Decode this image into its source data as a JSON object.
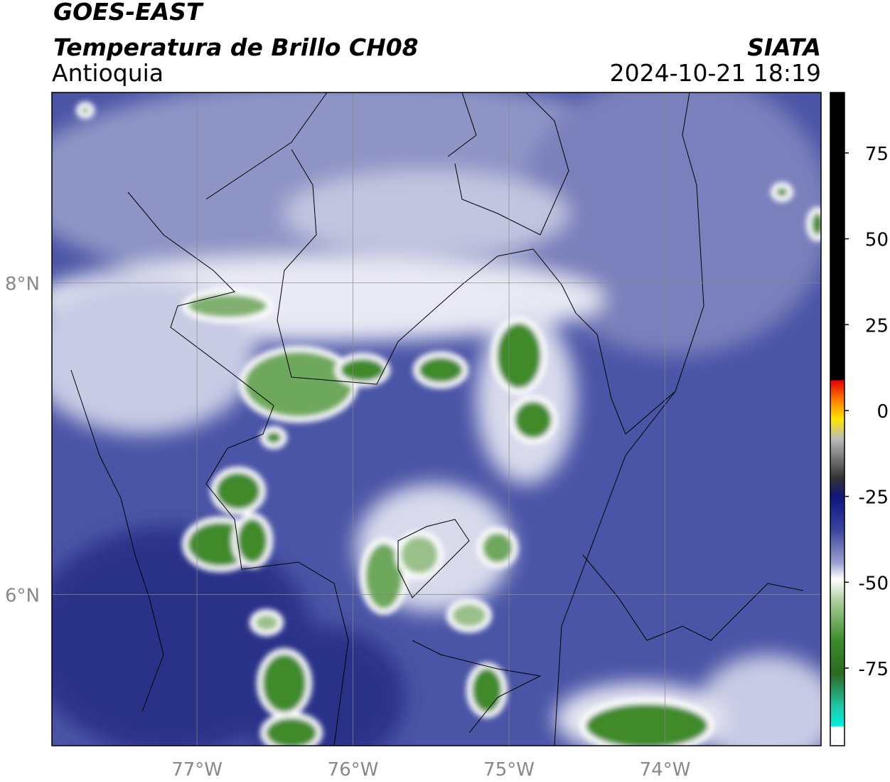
{
  "header": {
    "title": "GOES-EAST",
    "subtitle": "Temperatura de Brillo CH08",
    "region": "Antioquia",
    "source": "SIATA",
    "timestamp": "2024-10-21 18:19"
  },
  "map": {
    "lon_range": [
      -77.93,
      -73.0
    ],
    "lat_range": [
      5.03,
      9.22
    ],
    "lon_ticks": [
      {
        "value": -77,
        "label": "77°W"
      },
      {
        "value": -76,
        "label": "76°W"
      },
      {
        "value": -75,
        "label": "75°W"
      },
      {
        "value": -74,
        "label": "74°W"
      }
    ],
    "lat_ticks": [
      {
        "value": 8,
        "label": "8°N"
      },
      {
        "value": 6,
        "label": "6°N"
      }
    ],
    "grid": true
  },
  "colorbar": {
    "range": [
      -97.6,
      92.6
    ],
    "ticks": [
      75,
      50,
      25,
      0,
      -25,
      -50,
      -75
    ]
  }
}
